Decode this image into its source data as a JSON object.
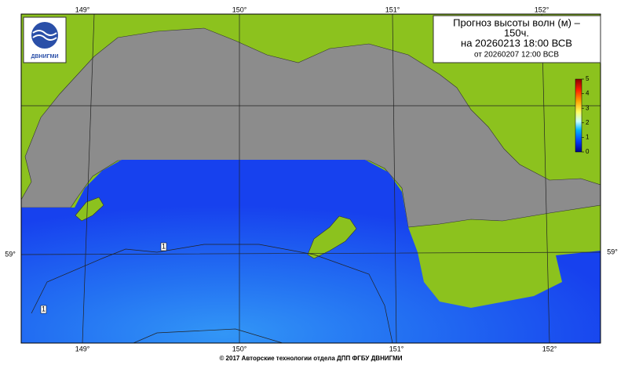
{
  "title": {
    "lines": [
      "Прогноз высоты волн (м) –",
      "150ч.",
      "на 20260213 18:00 ВСВ"
    ],
    "issued": "от 20260207 12:00 ВСВ"
  },
  "logo": "ДВНИГМИ",
  "colorbar": {
    "ticks": [
      0,
      1,
      2,
      3,
      4,
      5
    ]
  },
  "longitude_labels": [
    "149°",
    "150°",
    "151°",
    "152°"
  ],
  "latitude_labels": [
    "59°"
  ],
  "contour_labels": [
    "1",
    "1"
  ],
  "copyright": "© 2017 Авторские технологии отдела ДПП ФГБУ ДВНИГМИ"
}
